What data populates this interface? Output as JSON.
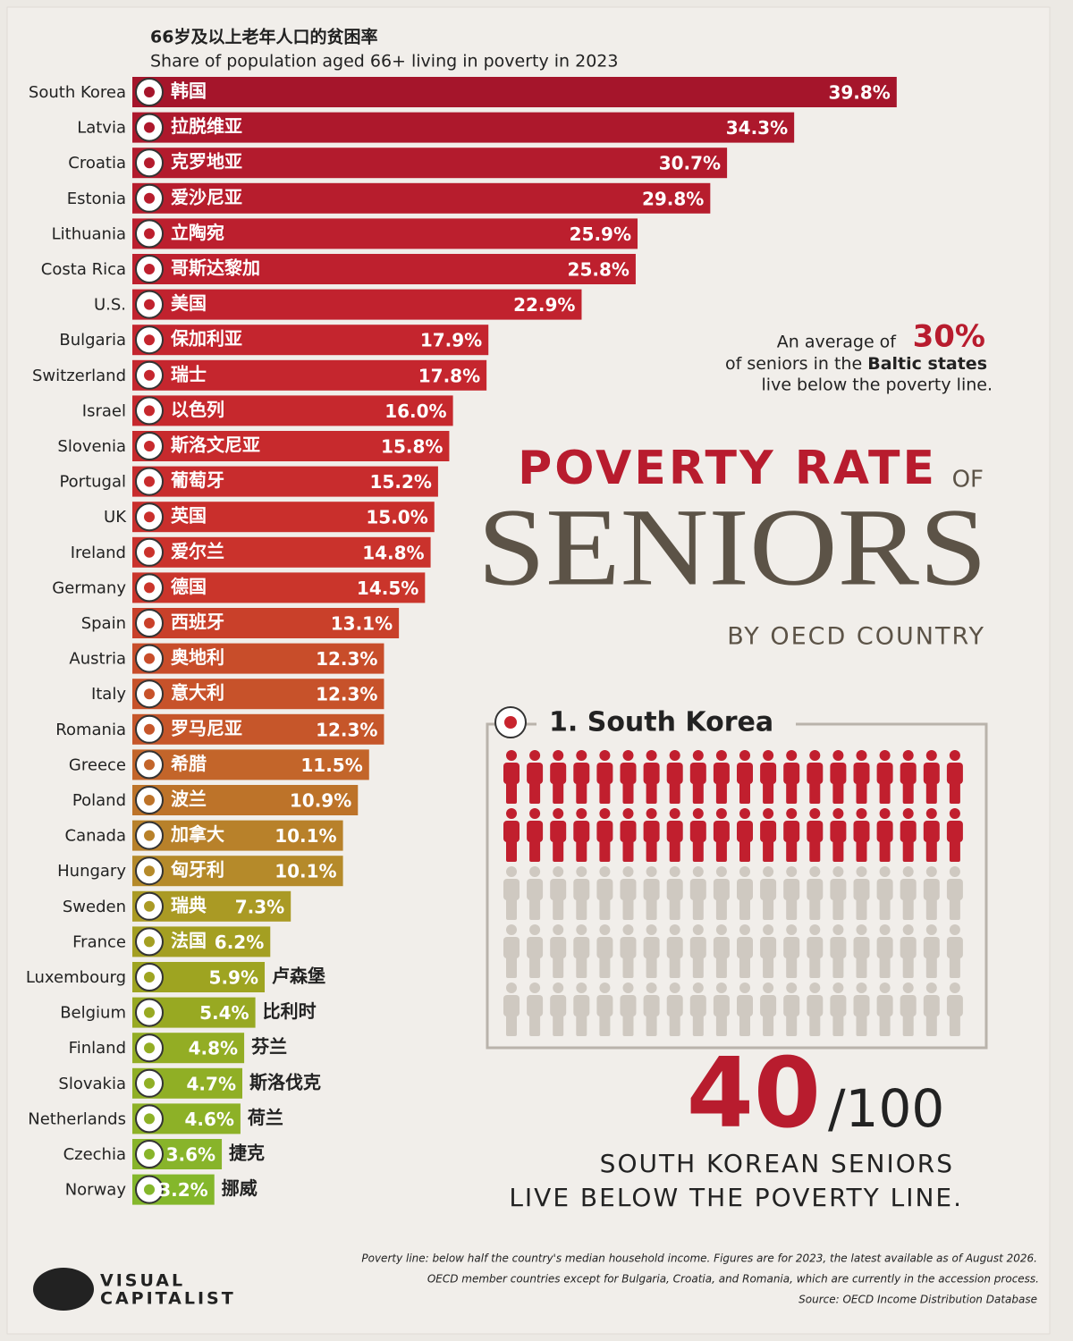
{
  "chart_data": {
    "type": "bar",
    "title": "66岁及以上老年人口的贫困率",
    "subtitle": "Share of population aged 66+ living in poverty in 2023",
    "categories": [
      "South Korea",
      "Latvia",
      "Croatia",
      "Estonia",
      "Lithuania",
      "Costa Rica",
      "U.S.",
      "Bulgaria",
      "Switzerland",
      "Israel",
      "Slovenia",
      "Portugal",
      "UK",
      "Ireland",
      "Germany",
      "Spain",
      "Austria",
      "Italy",
      "Romania",
      "Greece",
      "Poland",
      "Canada",
      "Hungary",
      "Sweden",
      "France",
      "Luxembourg",
      "Belgium",
      "Finland",
      "Slovakia",
      "Netherlands",
      "Czechia",
      "Norway"
    ],
    "local_names": [
      "韩国",
      "拉脱维亚",
      "克罗地亚",
      "爱沙尼亚",
      "立陶宛",
      "哥斯达黎加",
      "美国",
      "保加利亚",
      "瑞士",
      "以色列",
      "斯洛文尼亚",
      "葡萄牙",
      "英国",
      "爱尔兰",
      "德国",
      "西班牙",
      "奥地利",
      "意大利",
      "罗马尼亚",
      "希腊",
      "波兰",
      "加拿大",
      "匈牙利",
      "瑞典",
      "法国",
      "卢森堡",
      "比利时",
      "芬兰",
      "斯洛伐克",
      "荷兰",
      "捷克",
      "挪威"
    ],
    "values": [
      39.8,
      34.3,
      30.7,
      29.8,
      25.9,
      25.8,
      22.9,
      17.9,
      17.8,
      16.0,
      15.8,
      15.2,
      15.0,
      14.8,
      14.5,
      13.1,
      12.3,
      12.3,
      12.3,
      11.5,
      10.9,
      10.1,
      10.1,
      7.3,
      6.2,
      5.9,
      5.4,
      4.8,
      4.7,
      4.6,
      3.6,
      3.2
    ],
    "value_labels": [
      "39.8%",
      "34.3%",
      "30.7%",
      "29.8%",
      "25.9%",
      "25.8%",
      "22.9%",
      "17.9%",
      "17.8%",
      "16.0%",
      "15.8%",
      "15.2%",
      "15.0%",
      "14.8%",
      "14.5%",
      "13.1%",
      "12.3%",
      "12.3%",
      "12.3%",
      "11.5%",
      "10.9%",
      "10.1%",
      "10.1%",
      "7.3%",
      "6.2%",
      "5.9%",
      "5.4%",
      "4.8%",
      "4.7%",
      "4.6%",
      "3.6%",
      "3.2%"
    ],
    "colors": [
      "#a5152b",
      "#ad182c",
      "#b31b2d",
      "#b71d2d",
      "#bc1f2e",
      "#be202e",
      "#c1222e",
      "#c4252e",
      "#c5262e",
      "#c6282d",
      "#c72a2d",
      "#c82c2d",
      "#c92f2c",
      "#ca322c",
      "#ca352b",
      "#c9402a",
      "#c84d2a",
      "#c7522a",
      "#c6562a",
      "#c3652a",
      "#bd7329",
      "#b8812a",
      "#b58a2a",
      "#aa9a24",
      "#a49f22",
      "#9ea421",
      "#98a922",
      "#93ad24",
      "#90af25",
      "#8db127",
      "#88b42a",
      "#84b72b"
    ]
  },
  "annotation": {
    "lead": "An average of",
    "figure": "30%",
    "line2": "of seniors in the",
    "emphasis": "Baltic states",
    "line3": "live below the poverty line."
  },
  "headline": {
    "line1": "POVERTY RATE",
    "of": "OF",
    "main": "SENIORS",
    "sub": "BY OECD COUNTRY"
  },
  "highlight": {
    "rank": "1. South Korea",
    "value": 40,
    "total": 100,
    "total_label": "/100",
    "line1": "SOUTH KOREAN SENIORS",
    "line2": "LIVE BELOW THE POVERTY LINE."
  },
  "footnotes": [
    "Poverty line: below half the country's median household income. Figures are for 2023, the latest available as of August 2026.",
    "OECD member countries except for Bulgaria, Croatia, and Romania, which are currently in the accession process.",
    "Source: OECD Income Distribution Database"
  ],
  "logo": {
    "line1": "VISUAL",
    "line2": "CAPITALIST"
  }
}
